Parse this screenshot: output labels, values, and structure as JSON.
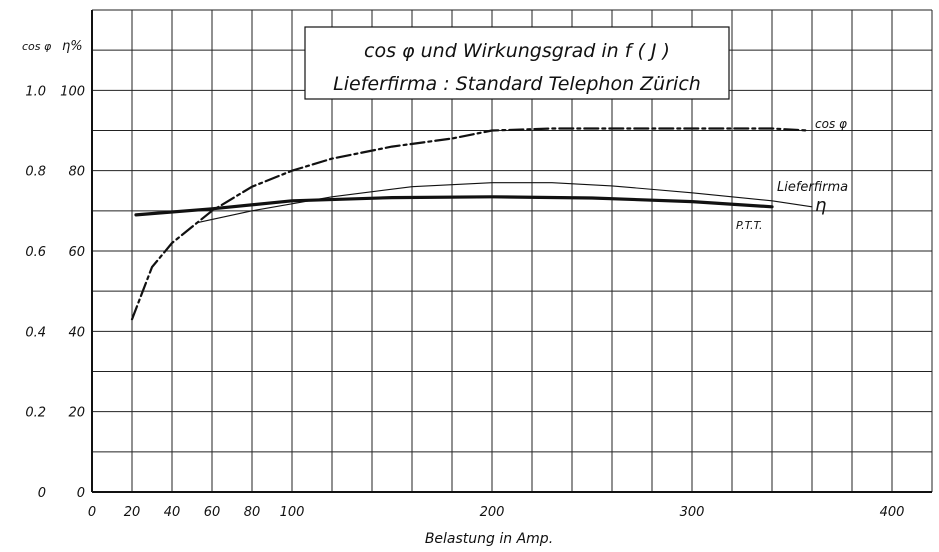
{
  "chart_data": {
    "type": "line",
    "title": "cos φ und Wirkungsgrad in f ( J )",
    "subtitle": "Lieferfirma : Standard Telephon Zürich",
    "xlabel": "Belastung  in  Amp.",
    "ylabel_left": "cos φ",
    "ylabel_right": "η%",
    "xlim": [
      0,
      420
    ],
    "x_ticks": [
      "0",
      "20",
      "40",
      "60",
      "80",
      "100",
      "200",
      "300",
      "400"
    ],
    "x_tick_values": [
      0,
      20,
      40,
      60,
      80,
      100,
      200,
      300,
      400
    ],
    "y_ticks_cos": [
      "0",
      "0.2",
      "0.4",
      "0.6",
      "0.8",
      "1.0"
    ],
    "y_ticks_eta": [
      "0",
      "20",
      "40",
      "60",
      "80",
      "100"
    ],
    "y_tick_values": [
      0,
      20,
      40,
      60,
      80,
      100
    ],
    "ylim": [
      0,
      120
    ],
    "grid": true,
    "series": [
      {
        "name": "cos φ",
        "axis": "cos",
        "style": "dash-dot",
        "x": [
          20,
          30,
          40,
          50,
          60,
          80,
          100,
          120,
          150,
          180,
          200,
          230,
          260,
          300,
          340,
          358
        ],
        "values": [
          0.43,
          0.56,
          0.62,
          0.66,
          0.7,
          0.76,
          0.8,
          0.83,
          0.86,
          0.88,
          0.9,
          0.905,
          0.905,
          0.905,
          0.905,
          0.9
        ]
      },
      {
        "name": "P.T.T.",
        "axis": "eta",
        "style": "thick",
        "x": [
          22,
          60,
          100,
          150,
          200,
          250,
          300,
          340
        ],
        "values": [
          69,
          70.5,
          72.5,
          73.3,
          73.5,
          73.2,
          72.3,
          71
        ]
      },
      {
        "name": "Lieferfirma η",
        "axis": "eta",
        "style": "thin",
        "x": [
          52,
          80,
          120,
          160,
          200,
          230,
          260,
          300,
          340,
          360
        ],
        "values": [
          67,
          70,
          73.5,
          76,
          77,
          77,
          76.2,
          74.5,
          72.5,
          71
        ]
      }
    ],
    "annotations": [
      "cos φ",
      "Lieferfirma",
      "η",
      "P.T.T."
    ]
  }
}
